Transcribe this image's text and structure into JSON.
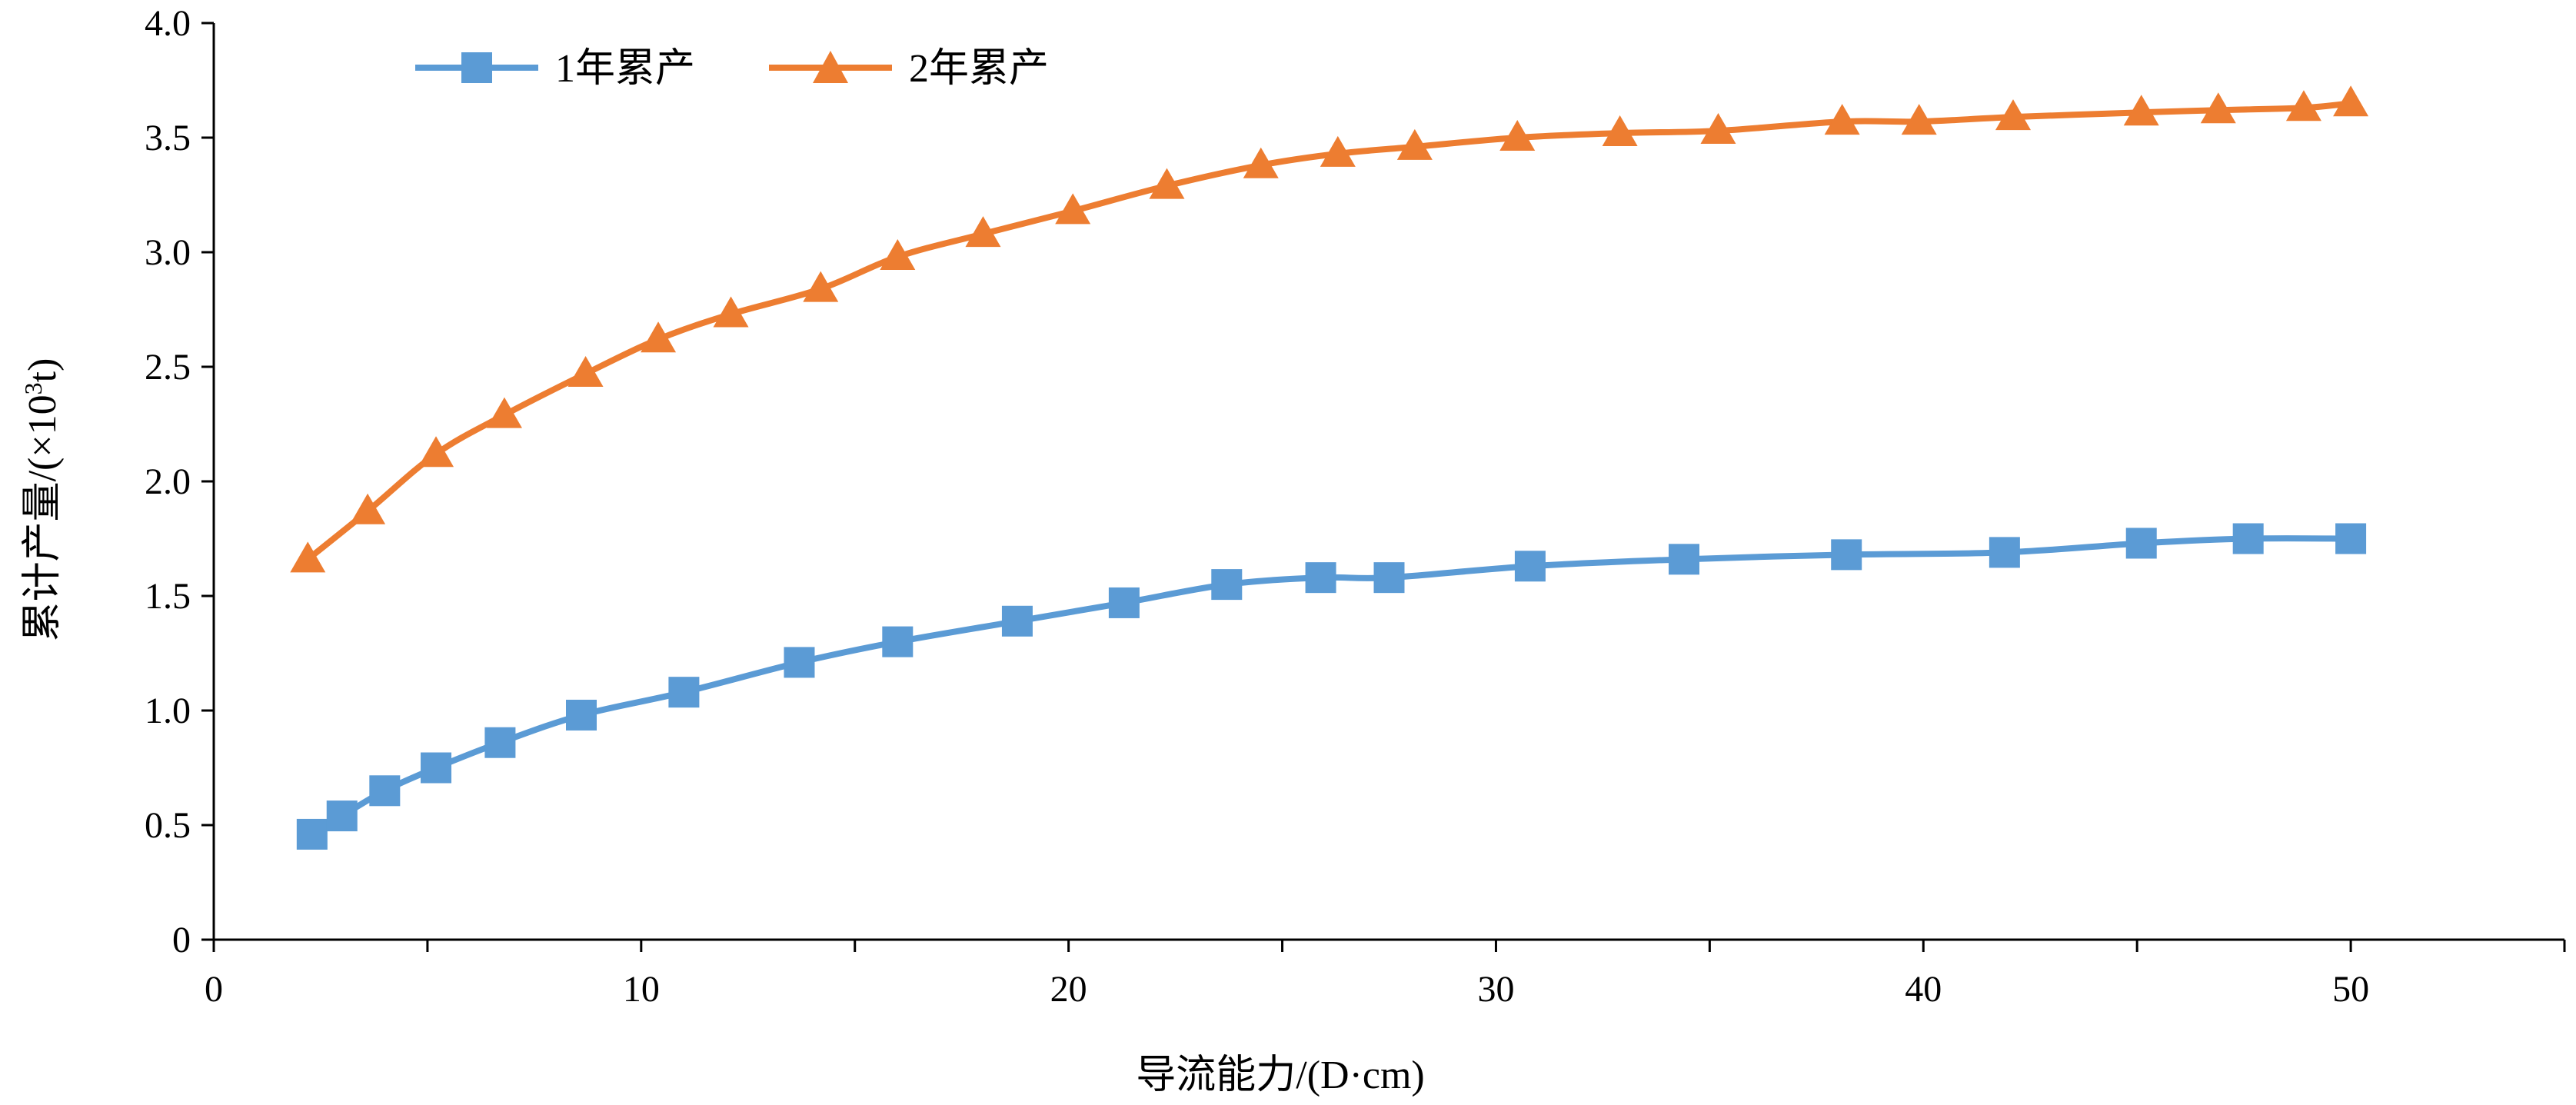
{
  "chart_data": {
    "type": "line",
    "title": "",
    "xlabel": "导流能力/(D·cm)",
    "ylabel_main": "累计产量/(×10",
    "ylabel_sup": "3",
    "ylabel_end": "t)",
    "xlim": [
      0,
      55
    ],
    "ylim": [
      0,
      4.0
    ],
    "x_ticks": [
      "0",
      "10",
      "20",
      "30",
      "40",
      "50"
    ],
    "x_tick_values": [
      0,
      10,
      20,
      30,
      40,
      50
    ],
    "y_ticks": [
      "0",
      "0.5",
      "1.0",
      "1.5",
      "2.0",
      "2.5",
      "3.0",
      "3.5",
      "4.0"
    ],
    "y_tick_values": [
      0,
      0.5,
      1.0,
      1.5,
      2.0,
      2.5,
      3.0,
      3.5,
      4.0
    ],
    "grid": false,
    "legend_position": "top-left",
    "series": [
      {
        "name": "1年累产",
        "color": "#5b9bd5",
        "marker": "square",
        "x": [
          2.3,
          3.0,
          4.0,
          5.2,
          6.7,
          8.6,
          11.0,
          13.7,
          16.0,
          18.8,
          21.3,
          23.7,
          25.9,
          27.5,
          30.8,
          34.4,
          38.2,
          41.9,
          45.1,
          47.6,
          50.0
        ],
        "y": [
          0.46,
          0.54,
          0.65,
          0.75,
          0.86,
          0.98,
          1.08,
          1.21,
          1.3,
          1.39,
          1.47,
          1.55,
          1.58,
          1.58,
          1.63,
          1.66,
          1.68,
          1.69,
          1.73,
          1.75,
          1.75
        ]
      },
      {
        "name": "2年累产",
        "color": "#ed7d31",
        "marker": "triangle",
        "x": [
          2.2,
          3.6,
          5.2,
          6.8,
          8.7,
          10.4,
          12.1,
          14.2,
          16.0,
          18.0,
          20.1,
          22.3,
          24.5,
          26.3,
          28.1,
          30.5,
          32.9,
          35.2,
          38.1,
          39.9,
          42.1,
          45.1,
          46.9,
          48.9,
          50.0
        ],
        "y": [
          1.66,
          1.87,
          2.12,
          2.29,
          2.47,
          2.62,
          2.73,
          2.84,
          2.98,
          3.08,
          3.18,
          3.29,
          3.38,
          3.43,
          3.46,
          3.5,
          3.52,
          3.53,
          3.57,
          3.57,
          3.59,
          3.61,
          3.62,
          3.63,
          3.65
        ]
      }
    ]
  }
}
